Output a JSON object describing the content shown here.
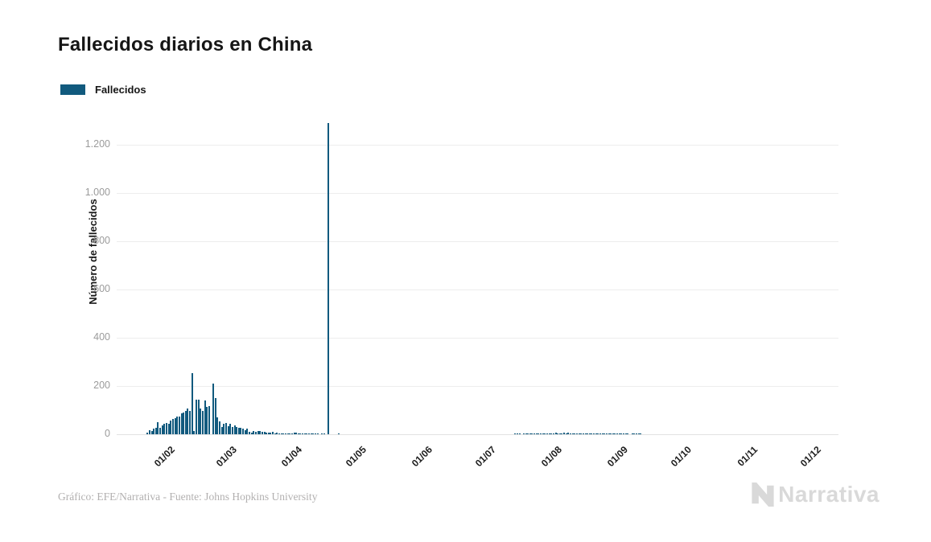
{
  "title": "Fallecidos diarios en China",
  "legend": {
    "label": "Fallecidos",
    "color": "#115a7e"
  },
  "footer": {
    "credit": "Gráfico: EFE/Narrativa - Fuente: Johns Hopkins University"
  },
  "logo": {
    "text": "Narrativa"
  },
  "chart_data": {
    "type": "bar",
    "title": "Fallecidos diarios en China",
    "xlabel": "",
    "ylabel": "Número de fallecidos",
    "ylim": [
      0,
      1320
    ],
    "grid": true,
    "bar_color": "#115a7e",
    "y_ticks": [
      0,
      200,
      400,
      600,
      800,
      1000,
      1200
    ],
    "y_tick_labels": [
      "0",
      "200",
      "400",
      "600",
      "800",
      "1.000",
      "1.200"
    ],
    "x_tick_labels": [
      "01/02",
      "01/03",
      "01/04",
      "01/05",
      "01/06",
      "01/07",
      "01/08",
      "01/09",
      "01/10",
      "01/11",
      "01/12"
    ],
    "x_tick_day_offsets": [
      9,
      38,
      69,
      99,
      130,
      160,
      191,
      222,
      252,
      283,
      313
    ],
    "start_date": "23/01/2020",
    "end_date": "01/12/2020",
    "values": [
      8,
      16,
      15,
      24,
      26,
      49,
      26,
      38,
      43,
      46,
      45,
      57,
      64,
      66,
      73,
      73,
      86,
      89,
      97,
      108,
      97,
      254,
      13,
      144,
      142,
      106,
      98,
      139,
      115,
      118,
      0,
      210,
      150,
      71,
      52,
      29,
      44,
      47,
      35,
      42,
      31,
      38,
      31,
      28,
      27,
      22,
      17,
      22,
      11,
      7,
      13,
      10,
      14,
      13,
      11,
      11,
      8,
      7,
      6,
      10,
      4,
      7,
      4,
      5,
      3,
      3,
      5,
      1,
      4,
      7,
      6,
      4,
      3,
      1,
      2,
      1,
      2,
      2,
      1,
      2,
      1,
      0,
      1,
      1,
      0,
      1290,
      0,
      0,
      0,
      0,
      1,
      0,
      0,
      0,
      0,
      0,
      0,
      0,
      0,
      0,
      0,
      0,
      0,
      0,
      0,
      0,
      0,
      0,
      0,
      0,
      0,
      0,
      0,
      0,
      0,
      0,
      0,
      0,
      0,
      0,
      0,
      0,
      0,
      0,
      0,
      0,
      0,
      0,
      0,
      0,
      0,
      0,
      0,
      0,
      0,
      0,
      0,
      0,
      0,
      0,
      0,
      0,
      0,
      0,
      0,
      0,
      0,
      0,
      0,
      0,
      0,
      0,
      0,
      0,
      0,
      0,
      0,
      0,
      0,
      0,
      0,
      0,
      0,
      0,
      0,
      0,
      0,
      0,
      0,
      0,
      0,
      0,
      0,
      1,
      2,
      1,
      0,
      2,
      1,
      3,
      2,
      2,
      3,
      2,
      5,
      4,
      3,
      2,
      4,
      3,
      5,
      5,
      6,
      4,
      3,
      5,
      6,
      5,
      7,
      4,
      3,
      5,
      4,
      2,
      3,
      5,
      4,
      3,
      2,
      4,
      3,
      2,
      3,
      2,
      1,
      2,
      3,
      1,
      2,
      1,
      2,
      1,
      2,
      1,
      2,
      1,
      1,
      0,
      1,
      2,
      1,
      1,
      5,
      0,
      0,
      0,
      0,
      0,
      0,
      0,
      0,
      0,
      0,
      0,
      0,
      0,
      0,
      0,
      0,
      0,
      0,
      0,
      0,
      0,
      0,
      0,
      0,
      0,
      0,
      0,
      0,
      0,
      0,
      0,
      0,
      0,
      0,
      0,
      0,
      0,
      0,
      0,
      0,
      0,
      0,
      0,
      0,
      0,
      0,
      0,
      0,
      0,
      0,
      0,
      0,
      0,
      0,
      0,
      0,
      0,
      0,
      0,
      0,
      0,
      0,
      0,
      0,
      0,
      0,
      0,
      0,
      0,
      0,
      0,
      0,
      0,
      0,
      0,
      0,
      0,
      0,
      0,
      0,
      0
    ]
  }
}
